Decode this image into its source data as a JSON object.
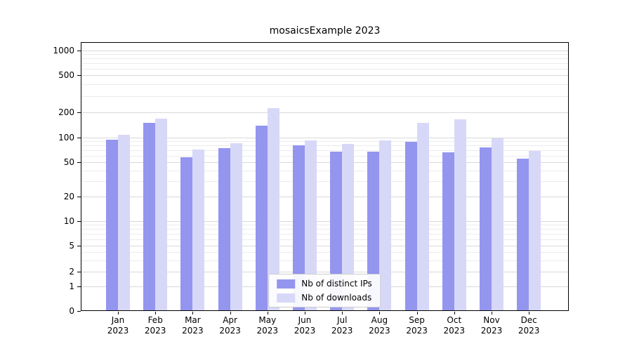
{
  "chart_data": {
    "type": "bar",
    "scale": "symlog",
    "title": "mosaicsExample 2023",
    "categories": [
      "Jan 2023",
      "Feb 2023",
      "Mar 2023",
      "Apr 2023",
      "May 2023",
      "Jun 2023",
      "Jul 2023",
      "Aug 2023",
      "Sep 2023",
      "Oct 2023",
      "Nov 2023",
      "Dec 2023"
    ],
    "series": [
      {
        "name": "Nb of distinct IPs",
        "color": "#9395ee",
        "values": [
          95,
          150,
          58,
          74,
          140,
          80,
          67,
          67,
          88,
          66,
          76,
          55
        ]
      },
      {
        "name": "Nb of downloads",
        "color": "#d7d8f8",
        "values": [
          108,
          168,
          72,
          86,
          220,
          93,
          84,
          93,
          150,
          165,
          98,
          68
        ]
      }
    ],
    "yticks": [
      0,
      1,
      2,
      5,
      10,
      20,
      50,
      100,
      200,
      500,
      1000
    ],
    "ylim": [
      0,
      1280
    ],
    "xlabel": "",
    "ylabel": "",
    "grid": true,
    "legend_position": "lower center"
  }
}
